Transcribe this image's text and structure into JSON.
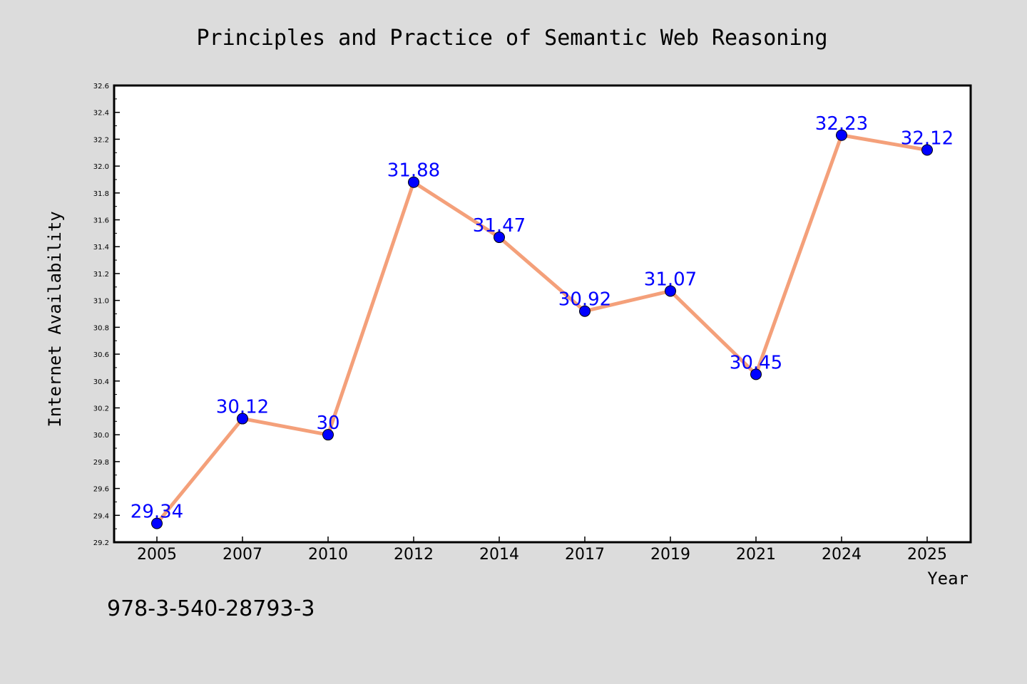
{
  "chart_data": {
    "type": "line",
    "title": "Principles and Practice of Semantic Web Reasoning",
    "xlabel": "Year",
    "ylabel": "Internet Availability",
    "categories": [
      "2005",
      "2007",
      "2010",
      "2012",
      "2014",
      "2017",
      "2019",
      "2021",
      "2024",
      "2025"
    ],
    "values": [
      29.34,
      30.12,
      30.0,
      31.88,
      31.47,
      30.92,
      31.07,
      30.45,
      32.23,
      32.12
    ],
    "data_labels": [
      "29.34",
      "30.12",
      "30",
      "31.88",
      "31.47",
      "30.92",
      "31.07",
      "30.45",
      "32.23",
      "32.12"
    ],
    "ylim": [
      29.2,
      32.6
    ],
    "yticks": [
      "29.2",
      "29.4",
      "29.6",
      "29.8",
      "30.0",
      "30.2",
      "30.4",
      "30.6",
      "30.8",
      "31.0",
      "31.2",
      "31.4",
      "31.6",
      "31.8",
      "32.0",
      "32.2",
      "32.4",
      "32.6"
    ],
    "grid": false,
    "line_color": "#f4a07a",
    "marker_color": "#0000ff",
    "label_color": "#0000ff"
  },
  "annotation": "978-3-540-28793-3"
}
